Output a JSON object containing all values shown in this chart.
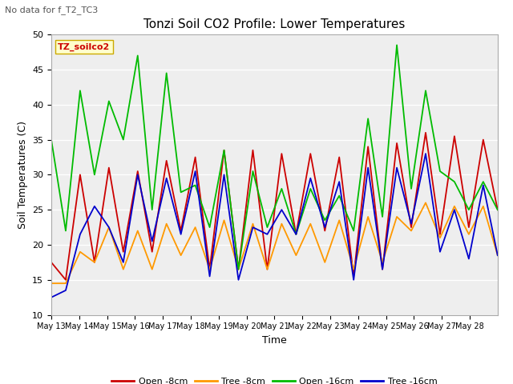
{
  "title": "Tonzi Soil CO2 Profile: Lower Temperatures",
  "subtitle": "No data for f_T2_TC3",
  "xlabel": "Time",
  "ylabel": "Soil Temperatures (C)",
  "ylim": [
    10,
    50
  ],
  "x_tick_labels": [
    "May 13",
    "May 14",
    "May 15",
    "May 16",
    "May 17",
    "May 18",
    "May 19",
    "May 20",
    "May 21",
    "May 22",
    "May 23",
    "May 24",
    "May 25",
    "May 26",
    "May 27",
    "May 28"
  ],
  "legend_label": "TZ_soilco2",
  "series": {
    "open_8cm": {
      "color": "#cc0000",
      "label": "Open -8cm",
      "y": [
        17.5,
        15.0,
        30.0,
        17.5,
        31.0,
        19.0,
        30.5,
        19.0,
        32.0,
        22.0,
        32.5,
        16.5,
        33.5,
        16.5,
        33.5,
        16.5,
        33.0,
        21.5,
        33.0,
        22.0,
        32.5,
        15.5,
        34.0,
        16.5,
        34.5,
        22.5,
        36.0,
        21.5,
        35.5,
        22.5,
        35.0,
        25.0
      ]
    },
    "tree_8cm": {
      "color": "#ff9900",
      "label": "Tree -8cm",
      "y": [
        14.5,
        14.5,
        19.0,
        17.5,
        22.5,
        16.5,
        22.0,
        16.5,
        23.0,
        18.5,
        22.5,
        16.5,
        23.5,
        16.5,
        23.0,
        16.5,
        23.0,
        18.5,
        23.0,
        17.5,
        23.5,
        16.5,
        24.0,
        17.5,
        24.0,
        22.0,
        26.0,
        21.0,
        25.5,
        21.5,
        25.5,
        18.5
      ]
    },
    "open_16cm": {
      "color": "#00bb00",
      "label": "Open -16cm",
      "y": [
        35.0,
        22.0,
        42.0,
        30.0,
        40.5,
        35.0,
        47.0,
        25.0,
        44.5,
        27.5,
        28.5,
        22.5,
        33.5,
        16.5,
        30.5,
        22.5,
        28.0,
        21.5,
        28.0,
        23.5,
        27.0,
        22.0,
        38.0,
        24.0,
        48.5,
        28.0,
        42.0,
        30.5,
        29.0,
        25.0,
        29.0,
        25.0
      ]
    },
    "tree_16cm": {
      "color": "#0000cc",
      "label": "Tree -16cm",
      "y": [
        12.5,
        13.5,
        21.5,
        25.5,
        22.5,
        17.5,
        30.0,
        20.5,
        29.5,
        21.5,
        30.5,
        15.5,
        30.0,
        15.0,
        22.5,
        21.5,
        25.0,
        21.5,
        29.5,
        22.5,
        29.0,
        15.0,
        31.0,
        16.5,
        31.0,
        23.0,
        33.0,
        19.0,
        25.0,
        18.0,
        28.5,
        18.5
      ]
    }
  }
}
